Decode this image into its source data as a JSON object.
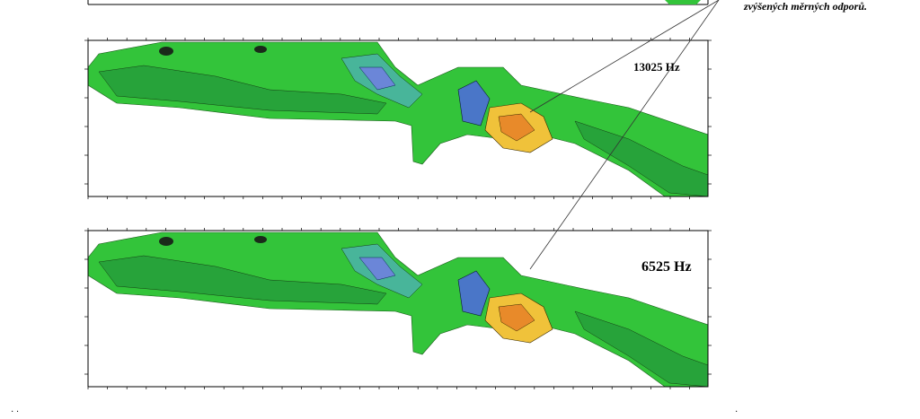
{
  "annotation": "zvýšených měrných odporů.",
  "panels": [
    {
      "label": "13025 Hz"
    },
    {
      "label": "6525 Hz"
    }
  ]
}
